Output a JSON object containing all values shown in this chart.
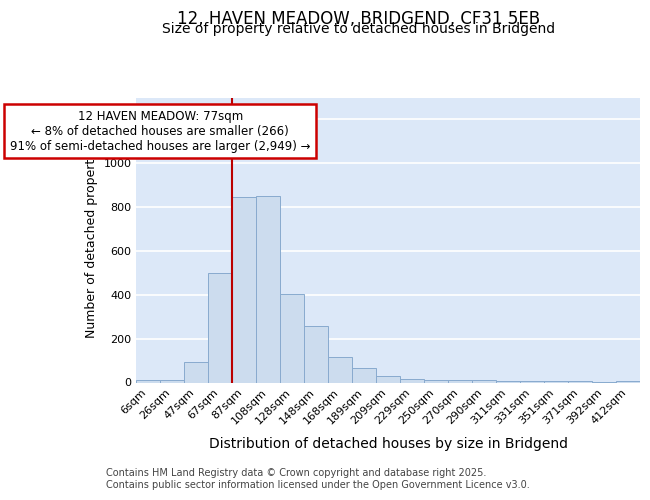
{
  "title1": "12, HAVEN MEADOW, BRIDGEND, CF31 5EB",
  "title2": "Size of property relative to detached houses in Bridgend",
  "xlabel": "Distribution of detached houses by size in Bridgend",
  "ylabel": "Number of detached properties",
  "categories": [
    "6sqm",
    "26sqm",
    "47sqm",
    "67sqm",
    "87sqm",
    "108sqm",
    "128sqm",
    "148sqm",
    "168sqm",
    "189sqm",
    "209sqm",
    "229sqm",
    "250sqm",
    "270sqm",
    "290sqm",
    "311sqm",
    "331sqm",
    "351sqm",
    "371sqm",
    "392sqm",
    "412sqm"
  ],
  "values": [
    10,
    10,
    95,
    500,
    845,
    850,
    405,
    260,
    115,
    65,
    30,
    18,
    12,
    12,
    10,
    5,
    5,
    5,
    5,
    3,
    8
  ],
  "bar_color": "#ccdcee",
  "bar_edge_color": "#88aace",
  "vline_x_index": 3.5,
  "vline_color": "#bb0000",
  "ylim": [
    0,
    1300
  ],
  "yticks": [
    0,
    200,
    400,
    600,
    800,
    1000,
    1200
  ],
  "annotation_text": "12 HAVEN MEADOW: 77sqm\n← 8% of detached houses are smaller (266)\n91% of semi-detached houses are larger (2,949) →",
  "annotation_box_color": "#ffffff",
  "annotation_box_edge": "#cc0000",
  "plot_bg_color": "#dce8f8",
  "fig_bg_color": "#ffffff",
  "grid_color": "#ffffff",
  "footer_text": "Contains HM Land Registry data © Crown copyright and database right 2025.\nContains public sector information licensed under the Open Government Licence v3.0.",
  "title1_fontsize": 12,
  "title2_fontsize": 10,
  "tick_fontsize": 8,
  "ylabel_fontsize": 9,
  "xlabel_fontsize": 10,
  "footer_fontsize": 7
}
